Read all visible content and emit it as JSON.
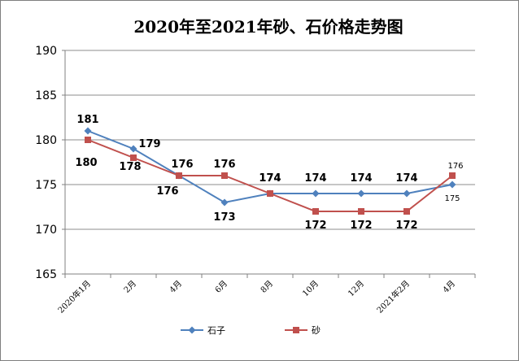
{
  "chart_data": {
    "type": "line",
    "title": "2020年至2021年砂、石价格走势图",
    "xlabel": "",
    "ylabel": "",
    "categories": [
      "2020年1月",
      "2月",
      "4月",
      "6月",
      "8月",
      "10月",
      "12月",
      "2021年2月",
      "4月"
    ],
    "ylim": [
      165,
      190
    ],
    "yticks": [
      165,
      170,
      175,
      180,
      185,
      190
    ],
    "grid": true,
    "legend_position": "bottom",
    "series": [
      {
        "name": "石子",
        "color": "#4F81BD",
        "marker": "diamond",
        "values": [
          181,
          179,
          176,
          173,
          174,
          174,
          174,
          174,
          175
        ]
      },
      {
        "name": "砂",
        "color": "#C0504D",
        "marker": "square",
        "values": [
          180,
          178,
          176,
          176,
          174,
          172,
          172,
          172,
          176
        ]
      }
    ]
  }
}
